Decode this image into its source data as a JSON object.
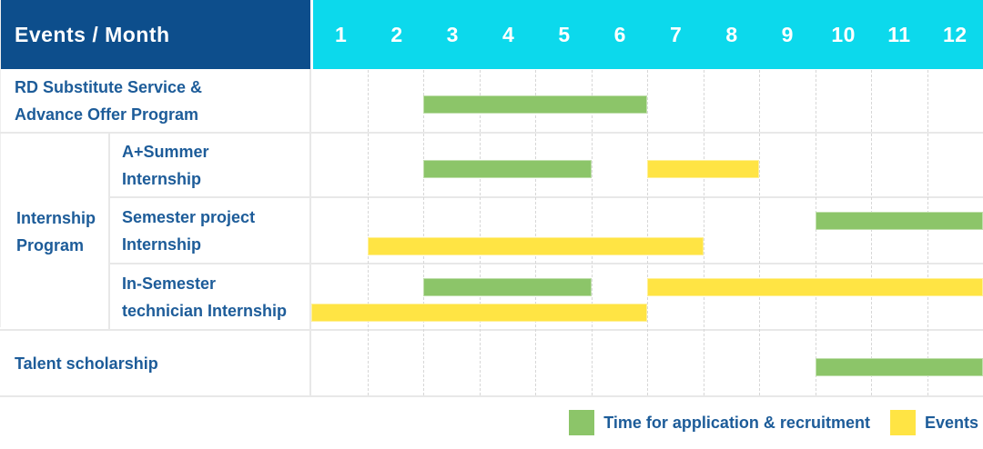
{
  "colors": {
    "header_navy": "#0d4e8c",
    "header_cyan": "#0cd9ec",
    "header_text": "#ffffff",
    "label_blue": "#1d5c99",
    "bar_green": "#8cc569",
    "bar_yellow": "#ffe444",
    "grid_solid": "#e8e8e8",
    "grid_dashed": "#d7d7d7"
  },
  "chart_data": {
    "type": "gantt",
    "title": "Events / Month",
    "x_unit": "month",
    "x_categories": [
      "1",
      "2",
      "3",
      "4",
      "5",
      "6",
      "7",
      "8",
      "9",
      "10",
      "11",
      "12"
    ],
    "x_range": [
      1,
      12
    ],
    "grid": "dashed vertical line at each month boundary",
    "legend_position": "bottom-right",
    "legend": [
      {
        "key": "application",
        "label": "Time for application & recruitment",
        "color": "#8cc569"
      },
      {
        "key": "events",
        "label": "Events",
        "color": "#ffe444"
      }
    ],
    "group_label_lines": [
      "Internship",
      "Program"
    ],
    "rows": [
      {
        "id": "rd-substitute",
        "label_lines": [
          "RD Substitute Service &",
          "Advance Offer Program"
        ],
        "bars": [
          {
            "series": "application",
            "start_month": 3,
            "end_month": 6,
            "lane": "center"
          }
        ]
      },
      {
        "id": "a-plus-summer",
        "label_lines": [
          "A+Summer",
          "Internship"
        ],
        "bars": [
          {
            "series": "application",
            "start_month": 3,
            "end_month": 5,
            "lane": "center"
          },
          {
            "series": "events",
            "start_month": 7,
            "end_month": 8,
            "lane": "center"
          }
        ]
      },
      {
        "id": "semester-project",
        "label_lines": [
          "Semester project",
          "Internship"
        ],
        "bars": [
          {
            "series": "application",
            "start_month": 10,
            "end_month": 12,
            "lane": "top"
          },
          {
            "series": "events",
            "start_month": 2,
            "end_month": 7,
            "lane": "bottom"
          }
        ]
      },
      {
        "id": "in-semester-technician",
        "label_lines": [
          "In-Semester",
          "technician Internship"
        ],
        "bars": [
          {
            "series": "application",
            "start_month": 3,
            "end_month": 5,
            "lane": "top"
          },
          {
            "series": "events",
            "start_month": 7,
            "end_month": 12,
            "lane": "top"
          },
          {
            "series": "events",
            "start_month": 1,
            "end_month": 6,
            "lane": "bottom"
          }
        ]
      },
      {
        "id": "talent-scholarship",
        "label_lines": [
          "Talent scholarship"
        ],
        "bars": [
          {
            "series": "application",
            "start_month": 10,
            "end_month": 12,
            "lane": "center"
          }
        ]
      }
    ]
  }
}
